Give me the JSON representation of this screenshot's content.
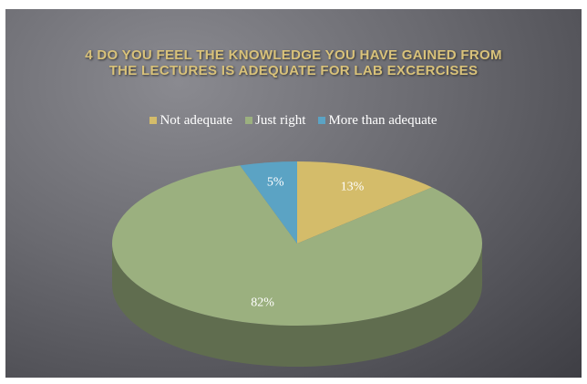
{
  "chart_data": {
    "type": "pie",
    "title": "4 DO YOU FEEL THE KNOWLEDGE YOU HAVE GAINED FROM THE LECTURES IS ADEQUATE FOR LAB EXCERCISES",
    "categories": [
      "Not adequate",
      "Just right",
      "More than adequate"
    ],
    "values": [
      13,
      82,
      5
    ],
    "value_labels": [
      "13%",
      "82%",
      "5%"
    ],
    "colors": [
      "#d4bc6a",
      "#9bb07f",
      "#5ba3c4"
    ],
    "legend": "top"
  }
}
